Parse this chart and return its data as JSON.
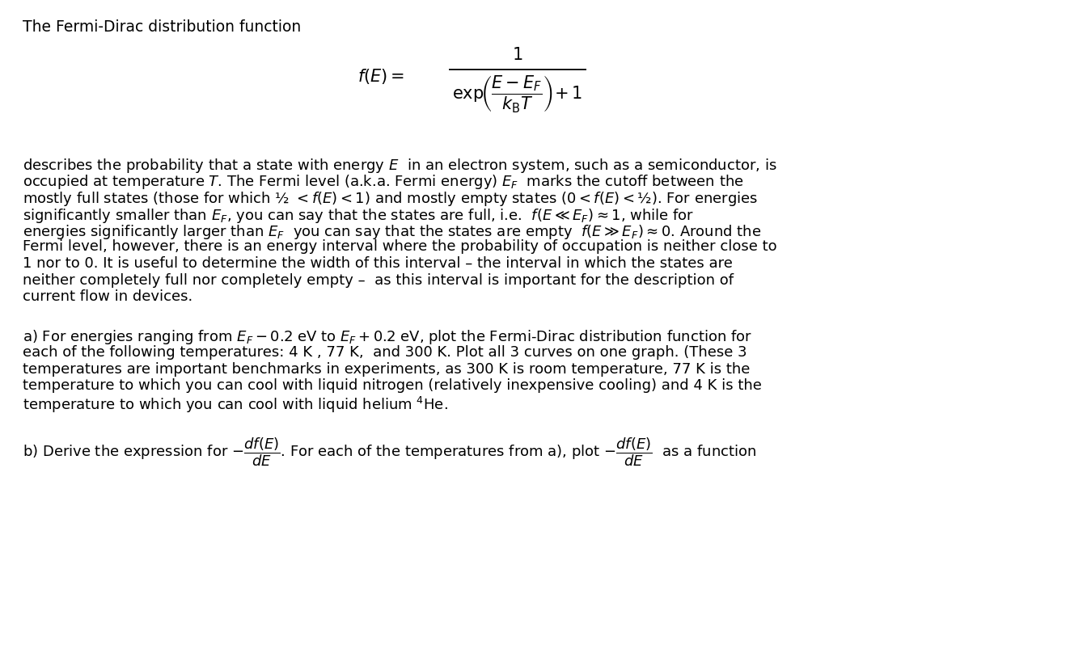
{
  "background_color": "#ffffff",
  "title_text": "The Fermi-Dirac distribution function",
  "body_fontsize": 13.0,
  "body_lines": [
    "describes the probability that a state with energy $E$  in an electron system, such as a semiconductor, is",
    "occupied at temperature $T$. The Fermi level (a.k.a. Fermi energy) $E_F$  marks the cutoff between the",
    "mostly full states (those for which ½ $<f(E)<1$) and mostly empty states ($0<f(E)<$½). For energies",
    "significantly smaller than $E_F$, you can say that the states are full, i.e.  $f(E \\ll E_F)\\approx 1$, while for",
    "energies significantly larger than $E_F$  you can say that the states are empty  $f(E \\gg E_F)\\approx 0$. Around the",
    "Fermi level, however, there is an energy interval where the probability of occupation is neither close to",
    "1 nor to 0. It is useful to determine the width of this interval – the interval in which the states are",
    "neither completely full nor completely empty –  as this interval is important for the description of",
    "current flow in devices."
  ],
  "para_a_lines": [
    "a) For energies ranging from $E_F - 0.2$ eV to $E_F + 0.2$ eV, plot the Fermi-Dirac distribution function for",
    "each of the following temperatures: 4 K , 77 K,  and 300 K. Plot all 3 curves on one graph. (These 3",
    "temperatures are important benchmarks in experiments, as 300 K is room temperature, 77 K is the",
    "temperature to which you can cool with liquid nitrogen (relatively inexpensive cooling) and 4 K is the",
    "temperature to which you can cool with liquid helium $^4$He."
  ],
  "para_b_line": "b) Derive the expression for $-\\dfrac{df(E)}{dE}$. For each of the temperatures from a), plot $-\\dfrac{df(E)}{dE}$  as a function"
}
